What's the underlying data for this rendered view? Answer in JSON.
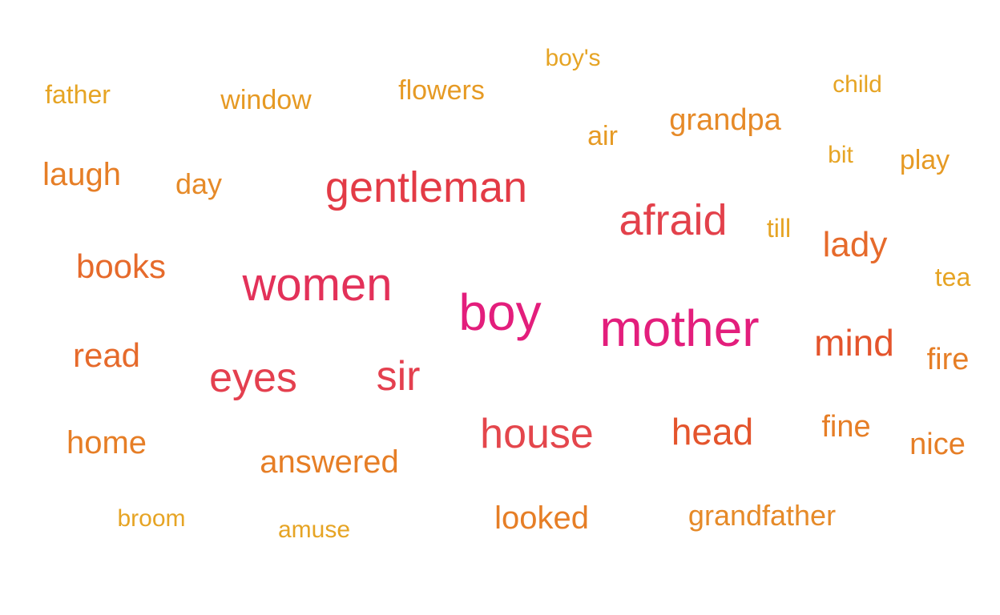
{
  "chart_data": {
    "type": "wordcloud",
    "words": [
      {
        "text": "mother",
        "weight": 100,
        "color": "#E31E7C"
      },
      {
        "text": "boy",
        "weight": 98,
        "color": "#E31E7C"
      },
      {
        "text": "women",
        "weight": 90,
        "color": "#E33159"
      },
      {
        "text": "gentleman",
        "weight": 84,
        "color": "#E33B46"
      },
      {
        "text": "afraid",
        "weight": 82,
        "color": "#E3414B"
      },
      {
        "text": "eyes",
        "weight": 80,
        "color": "#E4404F"
      },
      {
        "text": "sir",
        "weight": 80,
        "color": "#E4404F"
      },
      {
        "text": "house",
        "weight": 80,
        "color": "#E4464C"
      },
      {
        "text": "head",
        "weight": 70,
        "color": "#E4542C"
      },
      {
        "text": "mind",
        "weight": 70,
        "color": "#E4542C"
      },
      {
        "text": "lady",
        "weight": 66,
        "color": "#E66A2B"
      },
      {
        "text": "books",
        "weight": 64,
        "color": "#E66A2B"
      },
      {
        "text": "read",
        "weight": 64,
        "color": "#E66A2B"
      },
      {
        "text": "looked",
        "weight": 60,
        "color": "#E67E26"
      },
      {
        "text": "laugh",
        "weight": 60,
        "color": "#E67E26"
      },
      {
        "text": "home",
        "weight": 58,
        "color": "#E67E26"
      },
      {
        "text": "answered",
        "weight": 58,
        "color": "#E67E26"
      },
      {
        "text": "fine",
        "weight": 56,
        "color": "#E67E26"
      },
      {
        "text": "nice",
        "weight": 56,
        "color": "#E67E26"
      },
      {
        "text": "fire",
        "weight": 56,
        "color": "#E67E26"
      },
      {
        "text": "grandpa",
        "weight": 56,
        "color": "#E68A28"
      },
      {
        "text": "day",
        "weight": 54,
        "color": "#E68A28"
      },
      {
        "text": "grandfather",
        "weight": 52,
        "color": "#E68A28"
      },
      {
        "text": "window",
        "weight": 50,
        "color": "#E69A24"
      },
      {
        "text": "flowers",
        "weight": 50,
        "color": "#E69A24"
      },
      {
        "text": "air",
        "weight": 50,
        "color": "#E69A24"
      },
      {
        "text": "play",
        "weight": 48,
        "color": "#E69A24"
      },
      {
        "text": "till",
        "weight": 46,
        "color": "#E6A424"
      },
      {
        "text": "tea",
        "weight": 44,
        "color": "#E6A424"
      },
      {
        "text": "father",
        "weight": 44,
        "color": "#E6A424"
      },
      {
        "text": "boy's",
        "weight": 42,
        "color": "#E6A424"
      },
      {
        "text": "child",
        "weight": 42,
        "color": "#E6A424"
      },
      {
        "text": "bit",
        "weight": 42,
        "color": "#E6A424"
      },
      {
        "text": "broom",
        "weight": 42,
        "color": "#E6A424"
      },
      {
        "text": "amuse",
        "weight": 40,
        "color": "#E6A424"
      }
    ]
  }
}
